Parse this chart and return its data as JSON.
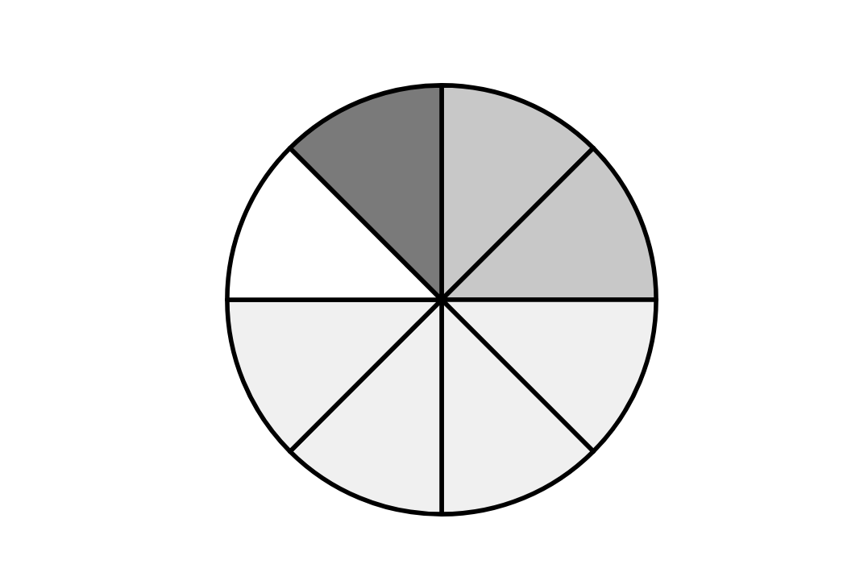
{
  "chart_data": {
    "type": "pie",
    "categories": [
      null,
      null,
      null,
      null,
      null,
      null,
      null,
      null
    ],
    "values": [
      12.5,
      12.5,
      12.5,
      12.5,
      12.5,
      12.5,
      12.5,
      12.5
    ],
    "colors": [
      "#c8c8c8",
      "#c8c8c8",
      "#f0f0f0",
      "#f0f0f0",
      "#f0f0f0",
      "#f0f0f0",
      "#ffffff",
      "#7a7a7a"
    ]
  }
}
